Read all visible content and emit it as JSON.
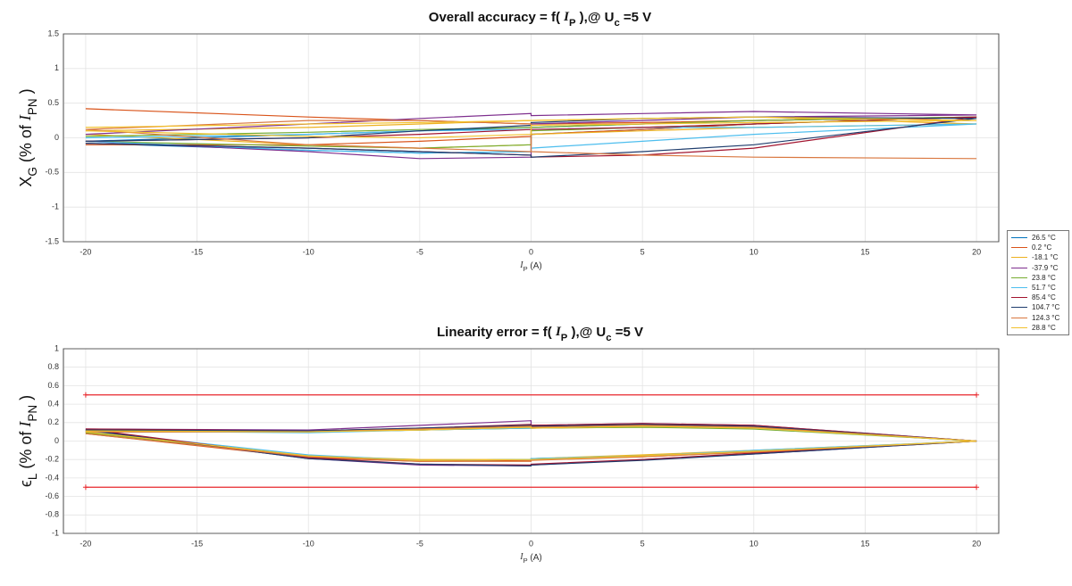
{
  "chart_data": [
    {
      "type": "line",
      "title": [
        {
          "text": "Overall accuracy = f( "
        },
        {
          "text": "I",
          "style": "italic"
        },
        {
          "text": "P",
          "style": "sub"
        },
        {
          "text": " ),@ U"
        },
        {
          "text": "c",
          "style": "sub"
        },
        {
          "text": " =5 V"
        }
      ],
      "ylabel": [
        {
          "text": "X"
        },
        {
          "text": "G",
          "style": "sub"
        },
        {
          "text": " (% of  "
        },
        {
          "text": "I",
          "style": "italic"
        },
        {
          "text": "PN",
          "style": "sub"
        },
        {
          "text": " )"
        }
      ],
      "xlabel": [
        {
          "text": "I",
          "style": "italic"
        },
        {
          "text": "P",
          "style": "sub"
        },
        {
          "text": " (A)"
        }
      ],
      "x": [
        -20,
        -10,
        -5,
        0,
        0,
        5,
        10,
        20,
        10,
        5,
        0,
        0,
        -5,
        -10,
        -20
      ],
      "xlim": [
        -21,
        21
      ],
      "xticks": [
        -20,
        -15,
        -10,
        -5,
        0,
        5,
        10,
        15,
        20
      ],
      "ylim": [
        -1.5,
        1.5
      ],
      "yticks": [
        -1.5,
        -1,
        -0.5,
        0,
        0.5,
        1,
        1.5
      ],
      "grid": true,
      "legend": "outside-right",
      "series": [
        {
          "name": "26.5 °C",
          "color": "#0072bd",
          "values": [
            -0.05,
            0.05,
            0.1,
            0.15,
            0.15,
            0.2,
            0.25,
            0.3,
            0.2,
            0.12,
            0.05,
            -0.2,
            -0.22,
            -0.18,
            -0.08
          ]
        },
        {
          "name": "0.2 °C",
          "color": "#d95319",
          "values": [
            0.42,
            0.3,
            0.25,
            0.2,
            0.2,
            0.22,
            0.25,
            0.3,
            0.2,
            0.12,
            0.05,
            0.02,
            -0.05,
            -0.1,
            -0.1
          ]
        },
        {
          "name": "-18.1 °C",
          "color": "#edb120",
          "values": [
            0.1,
            0.15,
            0.2,
            0.25,
            0.25,
            0.28,
            0.3,
            0.2,
            0.15,
            0.1,
            0.05,
            -0.1,
            -0.15,
            -0.1,
            0.05
          ]
        },
        {
          "name": "-37.9 °C",
          "color": "#7e2f8e",
          "values": [
            0.05,
            0.2,
            0.28,
            0.35,
            0.32,
            0.35,
            0.38,
            0.33,
            0.3,
            0.25,
            0.2,
            -0.28,
            -0.3,
            -0.2,
            -0.05
          ]
        },
        {
          "name": "23.8 °C",
          "color": "#77ac30",
          "values": [
            0.02,
            0.08,
            0.12,
            0.15,
            0.15,
            0.2,
            0.25,
            0.3,
            0.2,
            0.15,
            0.1,
            -0.1,
            -0.15,
            -0.12,
            -0.05
          ]
        },
        {
          "name": "51.7 °C",
          "color": "#4dbeee",
          "values": [
            0,
            0.05,
            0.1,
            0.12,
            0.12,
            0.15,
            0.15,
            0.2,
            0.05,
            -0.05,
            -0.15,
            -0.2,
            -0.22,
            -0.18,
            -0.05
          ]
        },
        {
          "name": "85.4 °C",
          "color": "#a2142f",
          "values": [
            -0.08,
            -0.15,
            -0.2,
            -0.25,
            -0.28,
            -0.25,
            -0.15,
            0.3,
            0.2,
            0.15,
            0.12,
            0.12,
            0.05,
            0,
            -0.05
          ]
        },
        {
          "name": "104.7 °C",
          "color": "#1f3d6d",
          "values": [
            -0.08,
            -0.15,
            -0.2,
            -0.25,
            -0.28,
            -0.2,
            -0.1,
            0.28,
            0.3,
            0.28,
            0.22,
            0.18,
            0.1,
            0,
            -0.05
          ]
        },
        {
          "name": "124.3 °C",
          "color": "#d9773f",
          "values": [
            0.12,
            -0.1,
            -0.15,
            -0.2,
            -0.2,
            -0.25,
            -0.28,
            -0.3,
            -0.28,
            -0.25,
            -0.2,
            0.2,
            0.25,
            0.25,
            0.12
          ]
        },
        {
          "name": "28.8 °C",
          "color": "#f2c12e",
          "values": [
            0.15,
            0.2,
            0.22,
            0.25,
            0.25,
            0.28,
            0.3,
            0.25,
            0.22,
            0.2,
            0.18,
            0.05,
            0,
            0.02,
            0.1
          ]
        }
      ]
    },
    {
      "type": "line",
      "title": [
        {
          "text": "Linearity error = f( "
        },
        {
          "text": "I",
          "style": "italic"
        },
        {
          "text": "P",
          "style": "sub"
        },
        {
          "text": " ),@ U"
        },
        {
          "text": "c",
          "style": "sub"
        },
        {
          "text": " =5 V"
        }
      ],
      "ylabel": [
        {
          "text": "ϵ"
        },
        {
          "text": "L",
          "style": "sub"
        },
        {
          "text": " (% of  "
        },
        {
          "text": "I",
          "style": "italic"
        },
        {
          "text": "PN",
          "style": "sub"
        },
        {
          "text": " )"
        }
      ],
      "xlabel": [
        {
          "text": "I",
          "style": "italic"
        },
        {
          "text": "P",
          "style": "sub"
        },
        {
          "text": " (A)"
        }
      ],
      "x": [
        -20,
        -10,
        -5,
        0,
        0,
        5,
        10,
        20,
        10,
        5,
        0,
        0,
        -5,
        -10,
        -20
      ],
      "xlim": [
        -21,
        21
      ],
      "xticks": [
        -20,
        -15,
        -10,
        -5,
        0,
        5,
        10,
        15,
        20
      ],
      "ylim": [
        -1,
        1
      ],
      "yticks": [
        -1,
        -0.8,
        -0.6,
        -0.4,
        -0.2,
        0,
        0.2,
        0.4,
        0.6,
        0.8,
        1
      ],
      "grid": true,
      "hlines": [
        0.5,
        -0.5
      ],
      "hline_color": "#e8262b",
      "series": [
        {
          "name": "26.5 °C",
          "color": "#0072bd",
          "values": [
            0.1,
            -0.17,
            -0.21,
            -0.2,
            -0.19,
            -0.16,
            -0.11,
            0,
            0.14,
            0.16,
            0.14,
            0.15,
            0.12,
            0.1,
            0.12
          ]
        },
        {
          "name": "0.2 °C",
          "color": "#d95319",
          "values": [
            0.08,
            -0.18,
            -0.22,
            -0.21,
            -0.2,
            -0.17,
            -0.12,
            0,
            0.15,
            0.17,
            0.15,
            0.16,
            0.12,
            0.1,
            0.1
          ]
        },
        {
          "name": "-18.1 °C",
          "color": "#edb120",
          "values": [
            0.1,
            -0.16,
            -0.2,
            -0.2,
            -0.19,
            -0.15,
            -0.1,
            0,
            0.14,
            0.15,
            0.14,
            0.14,
            0.12,
            0.1,
            0.11
          ]
        },
        {
          "name": "-37.9 °C",
          "color": "#7e2f8e",
          "values": [
            0.12,
            -0.19,
            -0.26,
            -0.27,
            -0.26,
            -0.2,
            -0.14,
            0,
            0.17,
            0.19,
            0.17,
            0.22,
            0.17,
            0.12,
            0.13
          ]
        },
        {
          "name": "23.8 °C",
          "color": "#77ac30",
          "values": [
            0.09,
            -0.16,
            -0.21,
            -0.2,
            -0.19,
            -0.16,
            -0.11,
            0,
            0.13,
            0.15,
            0.14,
            0.14,
            0.12,
            0.1,
            0.1
          ]
        },
        {
          "name": "51.7 °C",
          "color": "#4dbeee",
          "values": [
            0.11,
            -0.15,
            -0.21,
            -0.2,
            -0.19,
            -0.16,
            -0.1,
            0,
            0.14,
            0.16,
            0.14,
            0.14,
            0.12,
            0.09,
            0.11
          ]
        },
        {
          "name": "85.4 °C",
          "color": "#a2142f",
          "values": [
            0.13,
            -0.18,
            -0.25,
            -0.26,
            -0.25,
            -0.2,
            -0.13,
            0,
            0.17,
            0.19,
            0.17,
            0.18,
            0.14,
            0.11,
            0.13
          ]
        },
        {
          "name": "104.7 °C",
          "color": "#1f3d6d",
          "values": [
            0.12,
            -0.19,
            -0.25,
            -0.27,
            -0.26,
            -0.21,
            -0.14,
            0,
            0.16,
            0.18,
            0.16,
            0.17,
            0.14,
            0.11,
            0.12
          ]
        },
        {
          "name": "124.3 °C",
          "color": "#d9773f",
          "values": [
            0.08,
            -0.17,
            -0.22,
            -0.22,
            -0.21,
            -0.17,
            -0.12,
            0,
            0.15,
            0.17,
            0.15,
            0.16,
            0.13,
            0.1,
            0.1
          ]
        },
        {
          "name": "28.8 °C",
          "color": "#f2c12e",
          "values": [
            0.1,
            -0.16,
            -0.21,
            -0.2,
            -0.2,
            -0.16,
            -0.11,
            0,
            0.14,
            0.16,
            0.14,
            0.15,
            0.12,
            0.1,
            0.11
          ]
        }
      ]
    }
  ]
}
